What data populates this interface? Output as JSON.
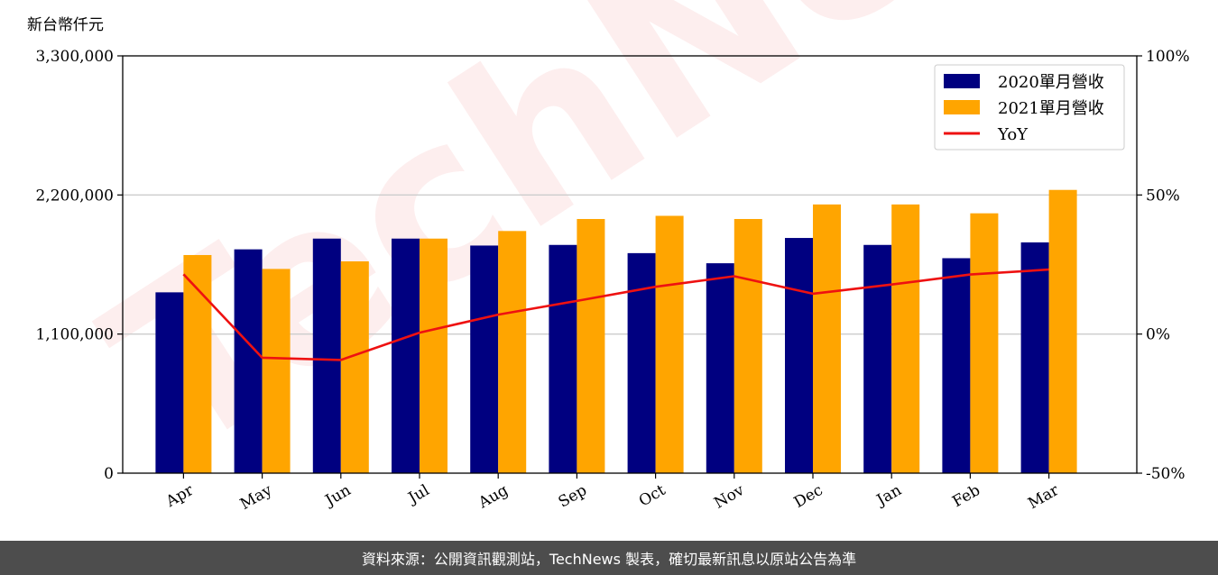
{
  "chart_data": {
    "type": "bar",
    "unit_label": "新台幣仟元",
    "categories": [
      "Apr",
      "May",
      "Jun",
      "Jul",
      "Aug",
      "Sep",
      "Oct",
      "Nov",
      "Dec",
      "Jan",
      "Feb",
      "Mar"
    ],
    "series": [
      {
        "name": "2020單月營收",
        "color": "#000080",
        "values": [
          1430000,
          1770000,
          1855000,
          1855000,
          1800000,
          1805000,
          1740000,
          1660000,
          1860000,
          1805000,
          1700000,
          1825000
        ]
      },
      {
        "name": "2021單月營收",
        "color": "#ffa500",
        "values": [
          1725000,
          1615000,
          1675000,
          1855000,
          1915000,
          2010000,
          2035000,
          2010000,
          2125000,
          2125000,
          2055000,
          2240000
        ]
      }
    ],
    "line_series": {
      "name": "YoY",
      "color": "#ee1111",
      "axis": "right",
      "values": [
        21.5,
        -8.5,
        -9.3,
        0.5,
        7.0,
        11.9,
        17.0,
        20.8,
        14.5,
        17.8,
        21.4,
        23.2
      ]
    },
    "y_left": {
      "range": [
        0,
        3300000
      ],
      "ticks": [
        "0",
        "1,100,000",
        "2,200,000",
        "3,300,000"
      ]
    },
    "y_right": {
      "range": [
        -50,
        100
      ],
      "ticks": [
        "-50%",
        "0%",
        "50%",
        "100%"
      ]
    },
    "grid": "horizontal",
    "legend": "top-right",
    "watermark": "TechNews"
  },
  "footer": {
    "text": "資料來源：公開資訊觀測站，TechNews 製表，確切最新訊息以原站公告為準"
  }
}
